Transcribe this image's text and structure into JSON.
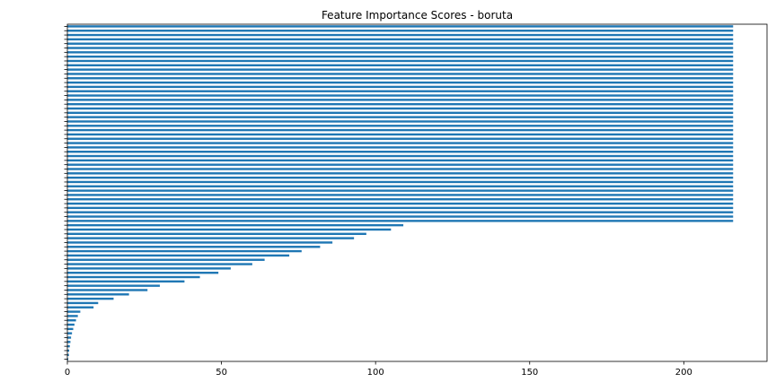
{
  "chart_data": {
    "type": "bar",
    "orientation": "horizontal",
    "title": "Feature Importance Scores - boruta",
    "xlabel": "",
    "ylabel": "",
    "xlim": [
      0,
      227
    ],
    "x_ticks": [
      0,
      50,
      100,
      150,
      200
    ],
    "grid": false,
    "legend": "none",
    "bar_color": "#1f77b4",
    "values": [
      0.3,
      0.5,
      0.6,
      0.8,
      1.0,
      1.2,
      1.5,
      1.9,
      2.3,
      2.8,
      3.4,
      4.2,
      8.5,
      10.0,
      15.0,
      20.0,
      26.0,
      30.0,
      38.0,
      43.0,
      49.0,
      53.0,
      60.0,
      64.0,
      72.0,
      76.0,
      82.0,
      86.0,
      93.0,
      97.0,
      105.0,
      109.0,
      216,
      216,
      216,
      216,
      216,
      216,
      216,
      216,
      216,
      216,
      216,
      216,
      216,
      216,
      216,
      216,
      216,
      216,
      216,
      216,
      216,
      216,
      216,
      216,
      216,
      216,
      216,
      216,
      216,
      216,
      216,
      216,
      216,
      216,
      216,
      216,
      216,
      216,
      216,
      216,
      216,
      216,
      216,
      216,
      216,
      216
    ]
  }
}
